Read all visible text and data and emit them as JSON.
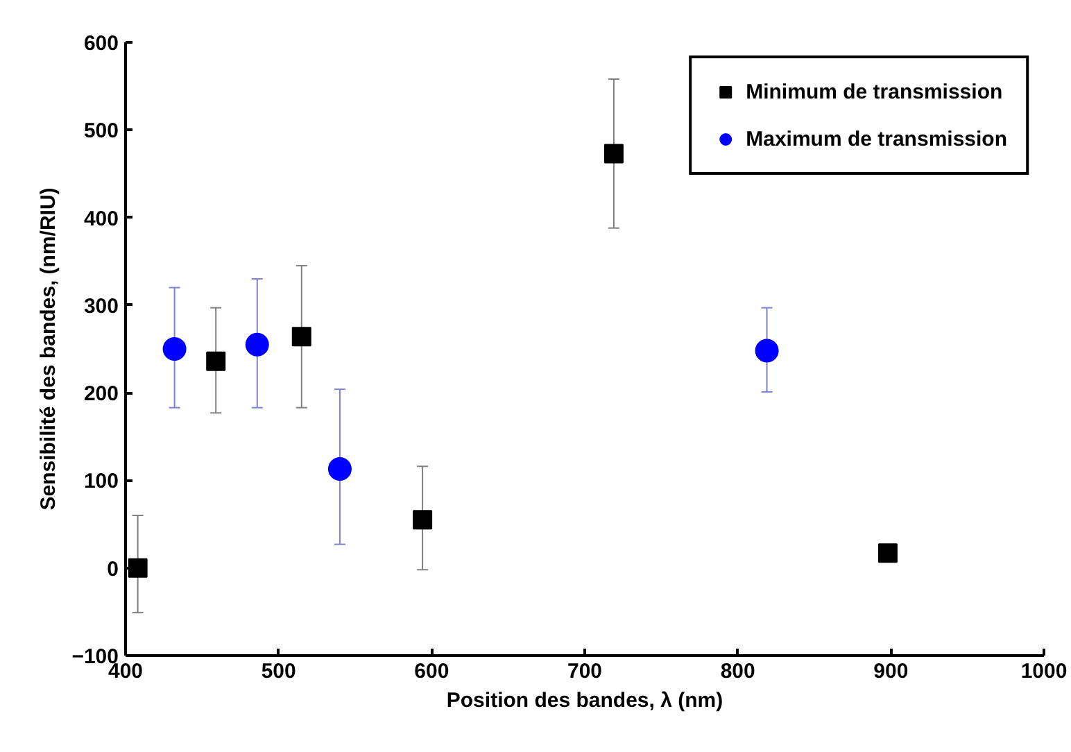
{
  "chart_data": {
    "type": "scatter",
    "xlabel": "Position des bandes, λ (nm)",
    "ylabel": "Sensibilité des bandes, (nm/RIU)",
    "xlim": [
      400,
      1000
    ],
    "xticks": [
      400,
      500,
      600,
      700,
      800,
      900,
      1000
    ],
    "ylim": [
      -100,
      600
    ],
    "yticks": [
      -100,
      0,
      100,
      200,
      300,
      400,
      500,
      600
    ],
    "grid": false,
    "legend": "top right",
    "series": [
      {
        "name": "Minimum de transmission",
        "color": "#000000",
        "marker": "square",
        "x": [
          408,
          459,
          515,
          594,
          719,
          898
        ],
        "values": [
          0,
          236,
          264,
          55,
          473,
          17
        ],
        "errors": [
          [
            -51,
            60
          ],
          [
            177,
            297
          ],
          [
            183,
            345
          ],
          [
            -2,
            116
          ],
          [
            388,
            558
          ],
          null
        ]
      },
      {
        "name": "Maximum de transmission",
        "color": "#0000ff",
        "marker": "circle",
        "x": [
          432,
          486,
          540,
          819
        ],
        "values": [
          250,
          255,
          113,
          248
        ],
        "errors": [
          [
            183,
            320
          ],
          [
            183,
            330
          ],
          [
            27,
            204
          ],
          [
            201,
            297
          ]
        ]
      }
    ]
  }
}
